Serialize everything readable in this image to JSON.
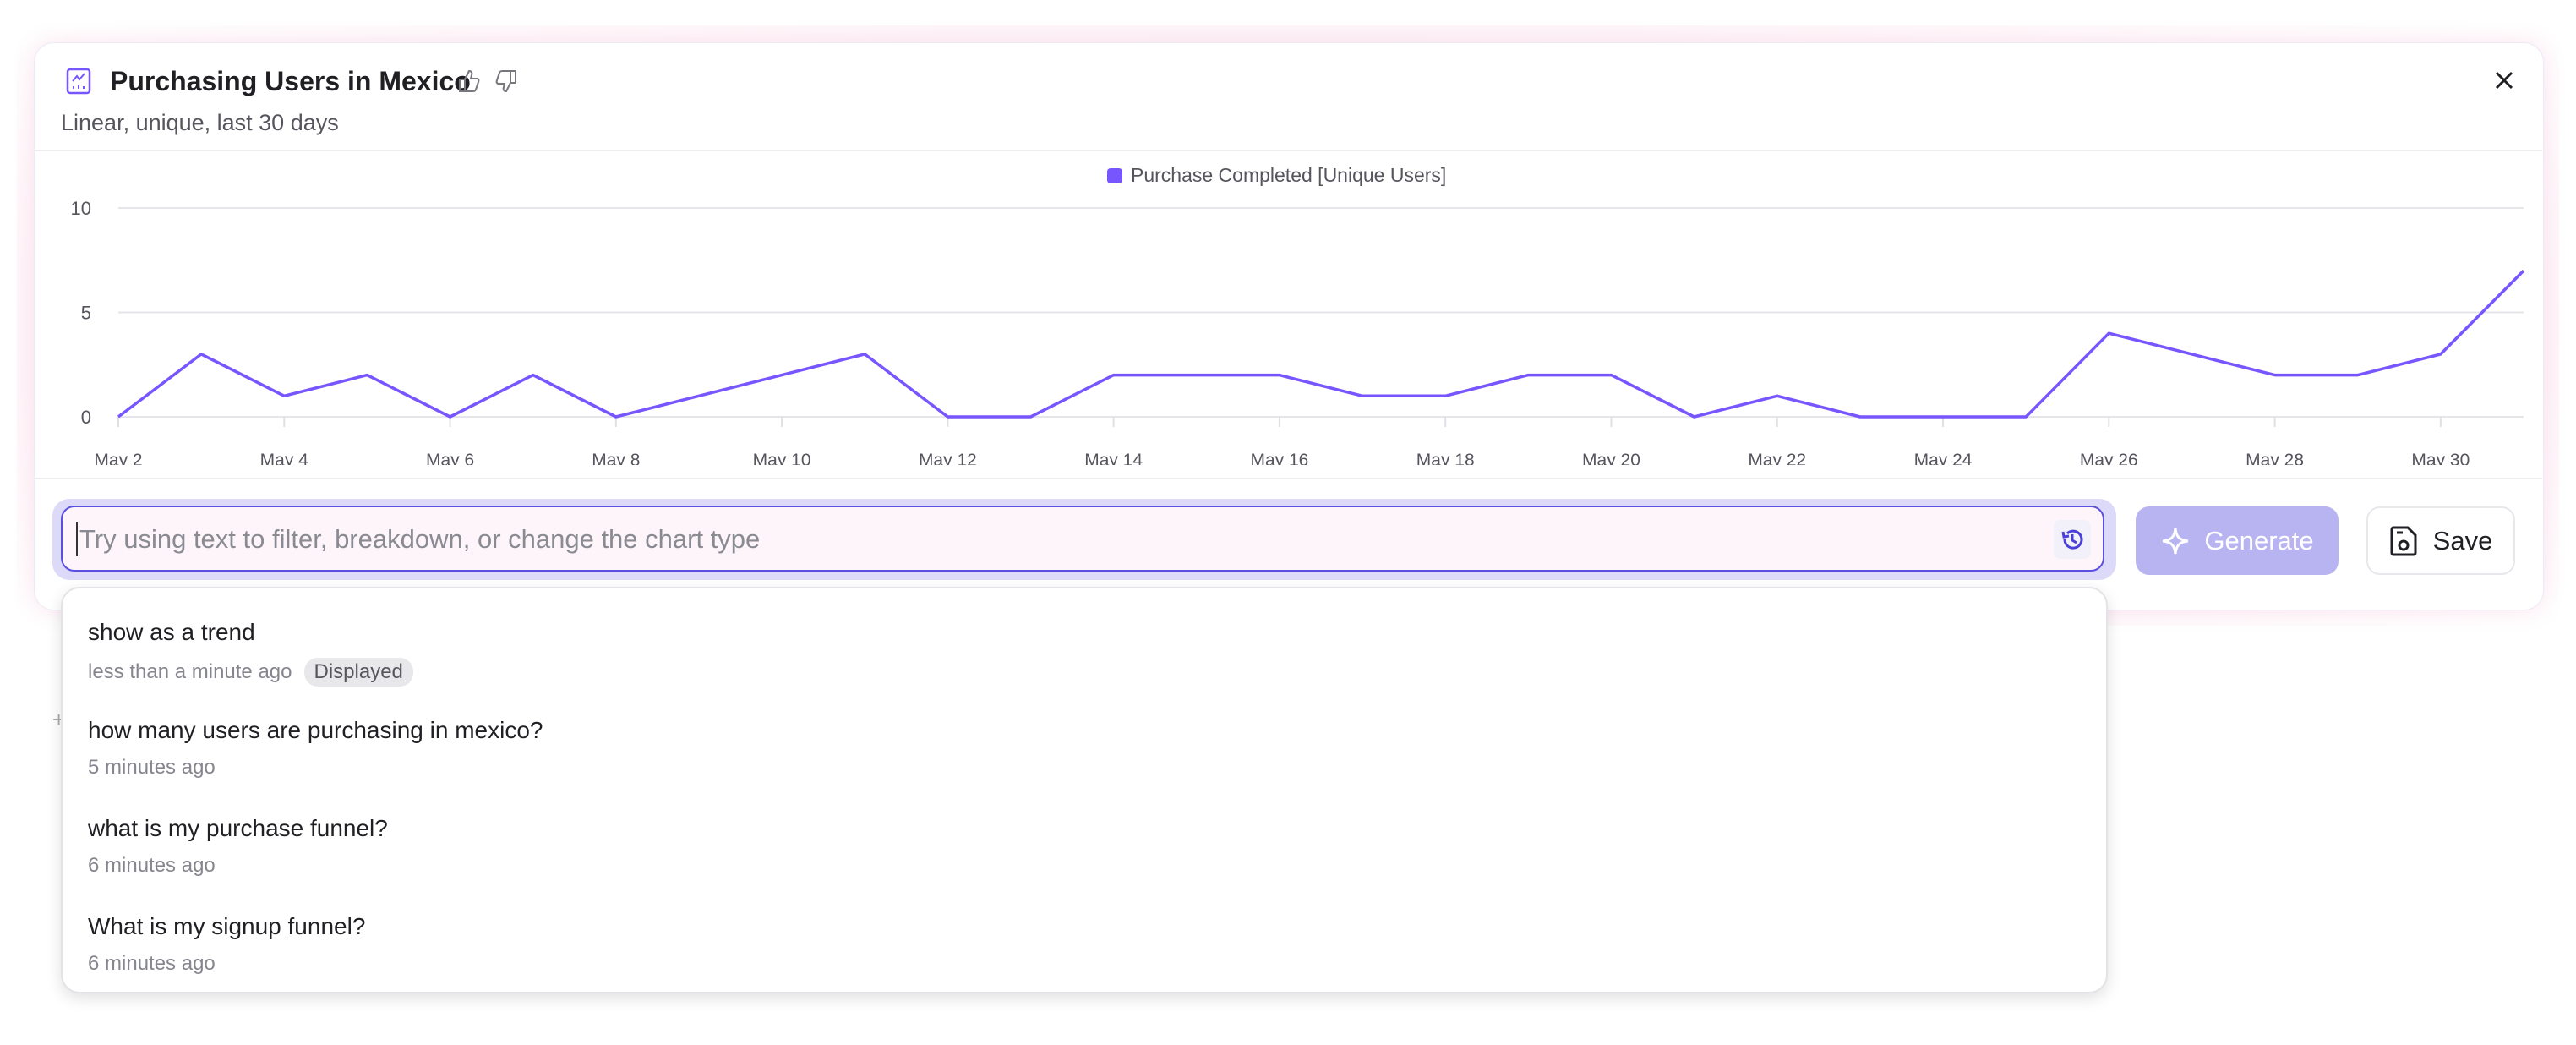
{
  "header": {
    "title": "Purchasing Users in Mexico",
    "subtitle": "Linear, unique, last 30 days",
    "icons": [
      "line-chart-icon",
      "thumbs-up-icon",
      "thumbs-down-icon",
      "close-icon"
    ]
  },
  "chart_data": {
    "type": "line",
    "legend": "top-center",
    "grid": true,
    "ylim": [
      0,
      10
    ],
    "yticks": [
      "0",
      "5",
      "10"
    ],
    "xticks": [
      "May 2",
      "May 4",
      "May 6",
      "May 8",
      "May 10",
      "May 12",
      "May 14",
      "May 16",
      "May 18",
      "May 20",
      "May 22",
      "May 24",
      "May 26",
      "May 28",
      "May 30"
    ],
    "x": [
      "May 2",
      "May 3",
      "May 4",
      "May 5",
      "May 6",
      "May 7",
      "May 8",
      "May 9",
      "May 10",
      "May 11",
      "May 12",
      "May 13",
      "May 14",
      "May 15",
      "May 16",
      "May 17",
      "May 18",
      "May 19",
      "May 20",
      "May 21",
      "May 22",
      "May 23",
      "May 24",
      "May 25",
      "May 26",
      "May 27",
      "May 28",
      "May 29",
      "May 30",
      "May 31"
    ],
    "series": [
      {
        "name": "Purchase Completed [Unique Users]",
        "color": "#7856ff",
        "values": [
          0,
          3,
          1,
          2,
          0,
          2,
          0,
          1,
          2,
          3,
          0,
          0,
          2,
          2,
          2,
          1,
          1,
          2,
          2,
          0,
          1,
          0,
          0,
          0,
          4,
          3,
          2,
          2,
          3,
          7
        ]
      }
    ]
  },
  "prompt": {
    "placeholder": "Try using text to filter, breakdown, or change the chart type",
    "value": "",
    "history_icon": "history-icon"
  },
  "buttons": {
    "generate": "Generate",
    "save": "Save"
  },
  "colors": {
    "accent": "#5a4fe0",
    "generate_bg": "#b8b4f2",
    "line": "#7856ff"
  },
  "history": [
    {
      "query": "show as a trend",
      "time": "less than a minute ago",
      "badge": "Displayed"
    },
    {
      "query": "how many users are purchasing in mexico?",
      "time": "5 minutes ago"
    },
    {
      "query": "what is my purchase funnel?",
      "time": "6 minutes ago"
    },
    {
      "query": "What is my signup funnel?",
      "time": "6 minutes ago"
    }
  ],
  "background": {
    "stray_glyph": "+"
  }
}
